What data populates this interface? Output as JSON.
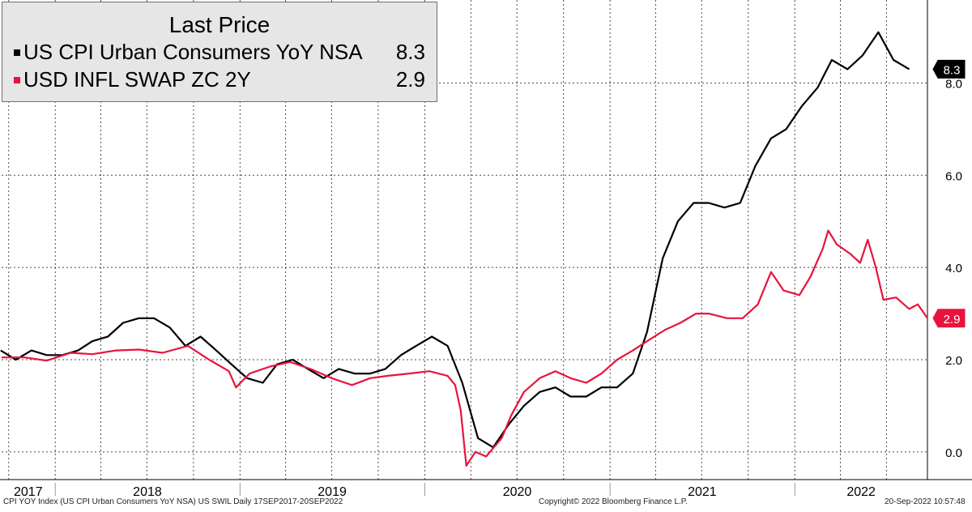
{
  "legend": {
    "title": "Last Price",
    "items": [
      {
        "name": "US CPI Urban Consumers YoY NSA",
        "value": "8.3",
        "color": "#000000"
      },
      {
        "name": "USD INFL SWAP ZC 2Y",
        "value": "2.9",
        "color": "#e8143c"
      }
    ]
  },
  "footer": {
    "left": "CPI YOY Index (US CPI Urban Consumers YoY NSA) US SWIL  Daily 17SEP2017-20SEP2022",
    "center": "Copyright© 2022 Bloomberg Finance L.P.",
    "right": "20-Sep-2022 10:57:48"
  },
  "chart_data": {
    "type": "line",
    "x_range": [
      "2017-09-17",
      "2022-09-20"
    ],
    "ylim": [
      -0.6,
      9.8
    ],
    "y_ticks": [
      "0.0",
      "2.0",
      "4.0",
      "6.0",
      "8.0"
    ],
    "year_labels": [
      "2017",
      "2018",
      "2019",
      "2020",
      "2021",
      "2022"
    ],
    "grid": true,
    "legend_position": "top-left",
    "last_value_tags": [
      "8.3",
      "2.9"
    ],
    "series": [
      {
        "name": "US CPI Urban Consumers YoY NSA",
        "color": "#000000",
        "points": [
          [
            "2017-09",
            2.2
          ],
          [
            "2017-10",
            2.0
          ],
          [
            "2017-11",
            2.2
          ],
          [
            "2017-12",
            2.1
          ],
          [
            "2018-01",
            2.1
          ],
          [
            "2018-02",
            2.2
          ],
          [
            "2018-03",
            2.4
          ],
          [
            "2018-04",
            2.5
          ],
          [
            "2018-05",
            2.8
          ],
          [
            "2018-06",
            2.9
          ],
          [
            "2018-07",
            2.9
          ],
          [
            "2018-08",
            2.7
          ],
          [
            "2018-09",
            2.3
          ],
          [
            "2018-10",
            2.5
          ],
          [
            "2018-11",
            2.2
          ],
          [
            "2018-12",
            1.9
          ],
          [
            "2019-01",
            1.6
          ],
          [
            "2019-02",
            1.5
          ],
          [
            "2019-03",
            1.9
          ],
          [
            "2019-04",
            2.0
          ],
          [
            "2019-05",
            1.8
          ],
          [
            "2019-06",
            1.6
          ],
          [
            "2019-07",
            1.8
          ],
          [
            "2019-08",
            1.7
          ],
          [
            "2019-09",
            1.7
          ],
          [
            "2019-10",
            1.8
          ],
          [
            "2019-11",
            2.1
          ],
          [
            "2019-12",
            2.3
          ],
          [
            "2020-01",
            2.5
          ],
          [
            "2020-02",
            2.3
          ],
          [
            "2020-03",
            1.5
          ],
          [
            "2020-04",
            0.3
          ],
          [
            "2020-05",
            0.1
          ],
          [
            "2020-06",
            0.6
          ],
          [
            "2020-07",
            1.0
          ],
          [
            "2020-08",
            1.3
          ],
          [
            "2020-09",
            1.4
          ],
          [
            "2020-10",
            1.2
          ],
          [
            "2020-11",
            1.2
          ],
          [
            "2020-12",
            1.4
          ],
          [
            "2021-01",
            1.4
          ],
          [
            "2021-02",
            1.7
          ],
          [
            "2021-03",
            2.6
          ],
          [
            "2021-04",
            4.2
          ],
          [
            "2021-05",
            5.0
          ],
          [
            "2021-06",
            5.4
          ],
          [
            "2021-07",
            5.4
          ],
          [
            "2021-08",
            5.3
          ],
          [
            "2021-09",
            5.4
          ],
          [
            "2021-10",
            6.2
          ],
          [
            "2021-11",
            6.8
          ],
          [
            "2021-12",
            7.0
          ],
          [
            "2022-01",
            7.5
          ],
          [
            "2022-02",
            7.9
          ],
          [
            "2022-03",
            8.5
          ],
          [
            "2022-04",
            8.3
          ],
          [
            "2022-05",
            8.6
          ],
          [
            "2022-06",
            9.1
          ],
          [
            "2022-07",
            8.5
          ],
          [
            "2022-08",
            8.3
          ]
        ]
      },
      {
        "name": "USD INFL SWAP ZC 2Y",
        "color": "#e8143c",
        "points": [
          [
            "2017-09-17",
            2.05
          ],
          [
            "2017-11-01",
            2.05
          ],
          [
            "2017-12-15",
            1.98
          ],
          [
            "2018-02-01",
            2.15
          ],
          [
            "2018-03-15",
            2.12
          ],
          [
            "2018-05-01",
            2.2
          ],
          [
            "2018-06-15",
            2.22
          ],
          [
            "2018-08-01",
            2.15
          ],
          [
            "2018-09-20",
            2.3
          ],
          [
            "2018-11-01",
            2.0
          ],
          [
            "2018-12-10",
            1.75
          ],
          [
            "2018-12-24",
            1.4
          ],
          [
            "2019-01-20",
            1.7
          ],
          [
            "2019-03-01",
            1.85
          ],
          [
            "2019-04-10",
            1.95
          ],
          [
            "2019-05-20",
            1.8
          ],
          [
            "2019-07-01",
            1.6
          ],
          [
            "2019-08-10",
            1.45
          ],
          [
            "2019-09-15",
            1.6
          ],
          [
            "2019-10-20",
            1.65
          ],
          [
            "2019-12-01",
            1.7
          ],
          [
            "2020-01-10",
            1.75
          ],
          [
            "2020-02-15",
            1.65
          ],
          [
            "2020-03-01",
            1.45
          ],
          [
            "2020-03-12",
            0.9
          ],
          [
            "2020-03-23",
            -0.3
          ],
          [
            "2020-04-10",
            0.0
          ],
          [
            "2020-05-01",
            -0.1
          ],
          [
            "2020-06-01",
            0.3
          ],
          [
            "2020-06-20",
            0.8
          ],
          [
            "2020-07-15",
            1.3
          ],
          [
            "2020-08-15",
            1.6
          ],
          [
            "2020-09-15",
            1.75
          ],
          [
            "2020-10-15",
            1.6
          ],
          [
            "2020-11-15",
            1.5
          ],
          [
            "2020-12-15",
            1.7
          ],
          [
            "2021-01-15",
            2.0
          ],
          [
            "2021-02-15",
            2.2
          ],
          [
            "2021-03-15",
            2.4
          ],
          [
            "2021-04-20",
            2.65
          ],
          [
            "2021-05-20",
            2.8
          ],
          [
            "2021-06-20",
            3.0
          ],
          [
            "2021-07-15",
            3.0
          ],
          [
            "2021-08-20",
            2.9
          ],
          [
            "2021-09-20",
            2.9
          ],
          [
            "2021-10-20",
            3.2
          ],
          [
            "2021-11-15",
            3.9
          ],
          [
            "2021-12-10",
            3.5
          ],
          [
            "2022-01-10",
            3.4
          ],
          [
            "2022-02-01",
            3.8
          ],
          [
            "2022-02-25",
            4.4
          ],
          [
            "2022-03-08",
            4.8
          ],
          [
            "2022-03-25",
            4.5
          ],
          [
            "2022-04-20",
            4.3
          ],
          [
            "2022-05-10",
            4.1
          ],
          [
            "2022-05-25",
            4.6
          ],
          [
            "2022-06-10",
            4.0
          ],
          [
            "2022-06-25",
            3.3
          ],
          [
            "2022-07-20",
            3.35
          ],
          [
            "2022-08-15",
            3.1
          ],
          [
            "2022-09-01",
            3.2
          ],
          [
            "2022-09-20",
            2.9
          ]
        ]
      }
    ]
  }
}
